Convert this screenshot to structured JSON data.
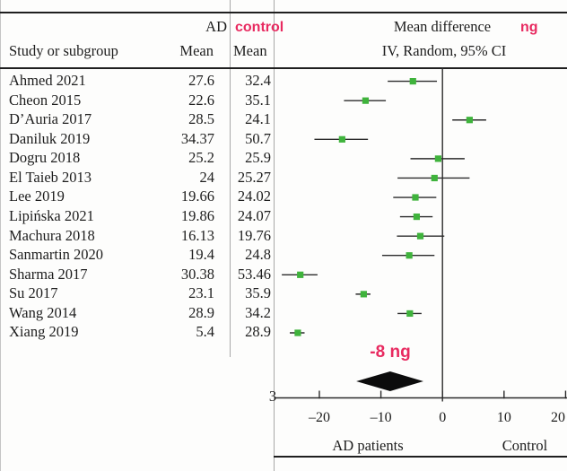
{
  "header": {
    "group_ad": "AD",
    "group_control": "control",
    "col_study": "Study or subgroup",
    "col_mean_ad": "Mean",
    "col_mean_control": "Mean",
    "effect_title": "Mean difference",
    "effect_unit": "ng",
    "effect_subtitle": "IV, Random, 95% CI"
  },
  "colors": {
    "accent_pink": "#e82a60",
    "marker_green": "#3fb33c",
    "ink": "#1d1d1d",
    "line_black": "#2b2b2b",
    "divider_gray": "#a8a8a8"
  },
  "chart_data": {
    "type": "forest",
    "effect_measure": "Mean difference, IV, Random, 95% CI",
    "studies": [
      {
        "label": "Ahmed 2021",
        "ad_mean": "27.6",
        "control_mean": "32.4",
        "md": -4.8,
        "ci_low": -8.9,
        "ci_high": -0.9
      },
      {
        "label": "Cheon 2015",
        "ad_mean": "22.6",
        "control_mean": "35.1",
        "md": -12.5,
        "ci_low": -16.0,
        "ci_high": -9.2
      },
      {
        "label": "D’Auria 2017",
        "ad_mean": "28.5",
        "control_mean": "24.1",
        "md": 4.4,
        "ci_low": 1.6,
        "ci_high": 7.1
      },
      {
        "label": "Daniluk 2019",
        "ad_mean": "34.37",
        "control_mean": "50.7",
        "md": -16.3,
        "ci_low": -20.8,
        "ci_high": -12.1
      },
      {
        "label": "Dogru 2018",
        "ad_mean": "25.2",
        "control_mean": "25.9",
        "md": -0.7,
        "ci_low": -5.2,
        "ci_high": 3.6
      },
      {
        "label": "El Taieb 2013",
        "ad_mean": "24",
        "control_mean": "25.27",
        "md": -1.3,
        "ci_low": -7.3,
        "ci_high": 4.4
      },
      {
        "label": "Lee 2019",
        "ad_mean": "19.66",
        "control_mean": "24.02",
        "md": -4.4,
        "ci_low": -8.0,
        "ci_high": -1.0
      },
      {
        "label": "Lipińska 2021",
        "ad_mean": "19.86",
        "control_mean": "24.07",
        "md": -4.2,
        "ci_low": -6.9,
        "ci_high": -1.6
      },
      {
        "label": "Machura 2018",
        "ad_mean": "16.13",
        "control_mean": "19.76",
        "md": -3.6,
        "ci_low": -7.4,
        "ci_high": 0.3
      },
      {
        "label": "Sanmartin 2020",
        "ad_mean": "19.4",
        "control_mean": "24.8",
        "md": -5.4,
        "ci_low": -9.8,
        "ci_high": -1.3
      },
      {
        "label": "Sharma 2017",
        "ad_mean": "30.38",
        "control_mean": "53.46",
        "md": -23.1,
        "ci_low": -26.1,
        "ci_high": -20.3
      },
      {
        "label": "Su 2017",
        "ad_mean": "23.1",
        "control_mean": "35.9",
        "md": -12.8,
        "ci_low": -14.1,
        "ci_high": -11.7
      },
      {
        "label": "Wang 2014",
        "ad_mean": "28.9",
        "control_mean": "34.2",
        "md": -5.3,
        "ci_low": -7.3,
        "ci_high": -3.4
      },
      {
        "label": "Xiang 2019",
        "ad_mean": "5.4",
        "control_mean": "28.9",
        "md": -23.5,
        "ci_low": -24.8,
        "ci_high": -22.4
      }
    ],
    "summary": {
      "label": "-8 ng",
      "value": -8.5,
      "ci_low": -14.0,
      "ci_high": -3.1
    },
    "axis": {
      "ticks": [
        -20,
        -10,
        0,
        10,
        20
      ],
      "tick_labels": [
        "–20",
        "–10",
        "0",
        "10",
        "20"
      ],
      "xmin": -27,
      "xmax": 20,
      "left_label": "AD patients",
      "right_label": "Control",
      "clipped_char": "3"
    }
  }
}
